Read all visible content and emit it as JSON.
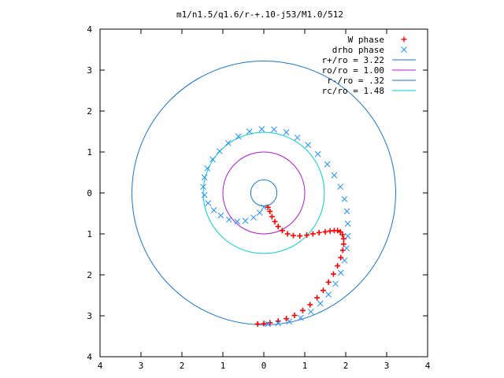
{
  "chart_data": {
    "type": "scatter",
    "title": "m1/n1.5/q1.6/r-+.10-j53/M1.0/512",
    "xlabel": "",
    "ylabel": "",
    "xlim": [
      -4,
      4
    ],
    "ylim": [
      -4,
      4
    ],
    "grid": false,
    "legend_position": "top-right",
    "x_tick_labels": [
      "4",
      "3",
      "2",
      "1",
      "0",
      "1",
      "2",
      "3",
      "4"
    ],
    "y_tick_labels": [
      "4",
      "3",
      "2",
      "1",
      "0",
      "1",
      "2",
      "3",
      "4"
    ],
    "colors": {
      "w_phase": "#ff0000",
      "drho_phase": "#1e90ff",
      "r_plus": "#1874cd",
      "ro": "#b019d0",
      "r_minus": "#1874cd",
      "rc": "#00cdcd"
    },
    "series": [
      {
        "name": "W phase",
        "marker": "plus",
        "points": [
          [
            0.1,
            -0.35
          ],
          [
            0.15,
            -0.45
          ],
          [
            0.2,
            -0.58
          ],
          [
            0.27,
            -0.7
          ],
          [
            0.35,
            -0.82
          ],
          [
            0.45,
            -0.92
          ],
          [
            0.58,
            -1.0
          ],
          [
            0.72,
            -1.04
          ],
          [
            0.88,
            -1.05
          ],
          [
            1.05,
            -1.03
          ],
          [
            1.2,
            -1.0
          ],
          [
            1.35,
            -0.97
          ],
          [
            1.5,
            -0.95
          ],
          [
            1.62,
            -0.93
          ],
          [
            1.72,
            -0.92
          ],
          [
            1.8,
            -0.92
          ],
          [
            1.87,
            -0.95
          ],
          [
            1.92,
            -1.02
          ],
          [
            1.95,
            -1.12
          ],
          [
            1.95,
            -1.25
          ],
          [
            1.93,
            -1.4
          ],
          [
            1.88,
            -1.58
          ],
          [
            1.8,
            -1.78
          ],
          [
            1.7,
            -1.98
          ],
          [
            1.58,
            -2.18
          ],
          [
            1.45,
            -2.38
          ],
          [
            1.3,
            -2.56
          ],
          [
            1.13,
            -2.73
          ],
          [
            0.95,
            -2.87
          ],
          [
            0.75,
            -2.99
          ],
          [
            0.55,
            -3.07
          ],
          [
            0.35,
            -3.13
          ],
          [
            0.15,
            -3.17
          ],
          [
            0.0,
            -3.19
          ],
          [
            -0.15,
            -3.2
          ]
        ]
      },
      {
        "name": "drho phase",
        "marker": "cross",
        "points": [
          [
            0.0,
            -0.35
          ],
          [
            -0.1,
            -0.48
          ],
          [
            -0.25,
            -0.6
          ],
          [
            -0.45,
            -0.68
          ],
          [
            -0.65,
            -0.7
          ],
          [
            -0.85,
            -0.65
          ],
          [
            -1.05,
            -0.55
          ],
          [
            -1.22,
            -0.42
          ],
          [
            -1.36,
            -0.25
          ],
          [
            -1.45,
            -0.05
          ],
          [
            -1.48,
            0.15
          ],
          [
            -1.45,
            0.38
          ],
          [
            -1.38,
            0.6
          ],
          [
            -1.25,
            0.82
          ],
          [
            -1.08,
            1.02
          ],
          [
            -0.87,
            1.22
          ],
          [
            -0.62,
            1.38
          ],
          [
            -0.35,
            1.5
          ],
          [
            -0.05,
            1.56
          ],
          [
            0.25,
            1.55
          ],
          [
            0.55,
            1.48
          ],
          [
            0.82,
            1.35
          ],
          [
            1.08,
            1.17
          ],
          [
            1.32,
            0.95
          ],
          [
            1.55,
            0.7
          ],
          [
            1.72,
            0.43
          ],
          [
            1.87,
            0.15
          ],
          [
            1.97,
            -0.15
          ],
          [
            2.03,
            -0.45
          ],
          [
            2.05,
            -0.75
          ],
          [
            2.05,
            -1.05
          ],
          [
            2.02,
            -1.35
          ],
          [
            1.97,
            -1.65
          ],
          [
            1.88,
            -1.95
          ],
          [
            1.75,
            -2.22
          ],
          [
            1.58,
            -2.48
          ],
          [
            1.38,
            -2.7
          ],
          [
            1.15,
            -2.9
          ],
          [
            0.9,
            -3.05
          ],
          [
            0.62,
            -3.14
          ],
          [
            0.35,
            -3.18
          ],
          [
            0.1,
            -3.2
          ]
        ]
      },
      {
        "name": "r+/ro = 3.22",
        "type": "circle",
        "radius": 3.22
      },
      {
        "name": "ro/ro = 1.00",
        "type": "circle",
        "radius": 1.0
      },
      {
        "name": "r-/ro = .32",
        "type": "circle",
        "radius": 0.32
      },
      {
        "name": "rc/ro = 1.48",
        "type": "circle",
        "radius": 1.48
      }
    ]
  }
}
